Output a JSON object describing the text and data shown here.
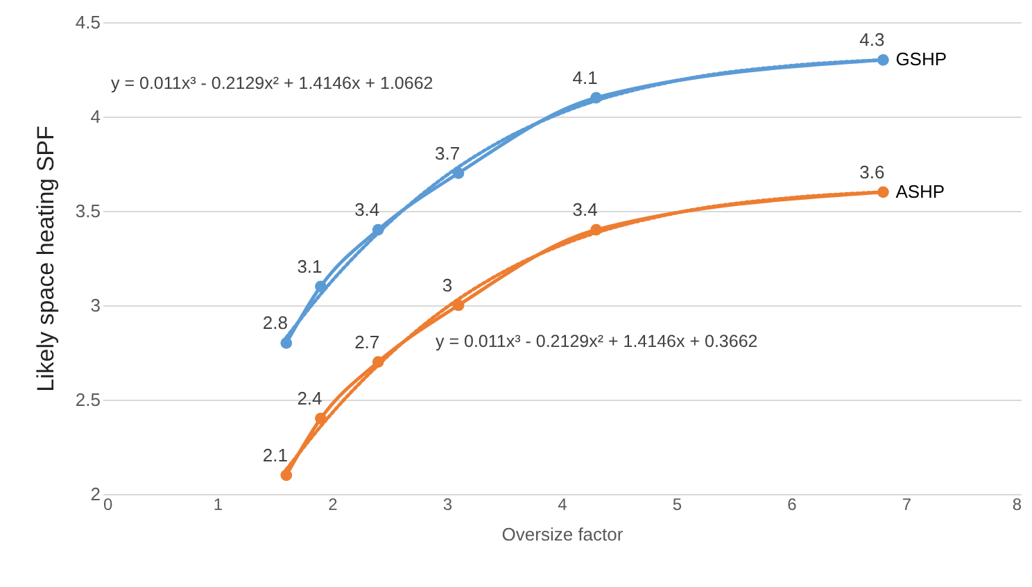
{
  "chart_data": {
    "type": "line",
    "xlabel": "Oversize factor",
    "ylabel": "Likely space heating SPF",
    "xlim": [
      0,
      8
    ],
    "xticks": [
      0,
      1,
      2,
      3,
      4,
      5,
      6,
      7,
      8
    ],
    "ylim": [
      2,
      4.5
    ],
    "yticks": [
      2,
      2.5,
      3,
      3.5,
      4,
      4.5
    ],
    "grid": "y",
    "marker": "circle",
    "line_style": "solid",
    "series": [
      {
        "name": "GSHP",
        "color": "#5b9bd5",
        "x": [
          1.6,
          1.9,
          2.4,
          3.1,
          4.3,
          6.8
        ],
        "values": [
          2.8,
          3.1,
          3.4,
          3.7,
          4.1,
          4.3
        ],
        "value_labels": [
          "2.8",
          "3.1",
          "3.4",
          "3.7",
          "4.1",
          "4.3"
        ]
      },
      {
        "name": "ASHP",
        "color": "#ed7d31",
        "x": [
          1.6,
          1.9,
          2.4,
          3.1,
          4.3,
          6.8
        ],
        "values": [
          2.1,
          2.4,
          2.7,
          3,
          3.4,
          3.6
        ],
        "value_labels": [
          "2.1",
          "2.4",
          "2.7",
          "3",
          "3.4",
          "3.6"
        ]
      },
      {
        "type": "line",
        "color": "#5b9bd5",
        "marker": "none",
        "line_style": "dotted",
        "x": [
          1.6,
          2,
          2.5,
          3,
          3.5,
          4,
          5,
          6,
          6.8
        ],
        "values": [
          2.83,
          3.13,
          3.44,
          3.69,
          3.88,
          4.02,
          4.19,
          4.27,
          4.3
        ]
      },
      {
        "type": "line",
        "color": "#ed7d31",
        "marker": "none",
        "line_style": "dotted",
        "x": [
          1.6,
          2,
          2.5,
          3,
          3.5,
          4,
          5,
          6,
          6.8
        ],
        "values": [
          2.13,
          2.43,
          2.74,
          2.99,
          3.18,
          3.32,
          3.49,
          3.57,
          3.6
        ]
      }
    ],
    "annotations": [
      "y = 0.011x³ - 0.2129x² + 1.4146x + 1.0662",
      "y = 0.011x³ - 0.2129x² + 1.4146x + 0.3662"
    ]
  }
}
